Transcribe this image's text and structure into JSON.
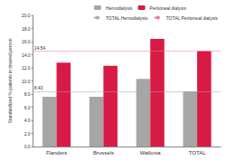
{
  "chart_data": {
    "type": "bar",
    "y_label": "Standardized % patients in insured person",
    "categories": [
      "Flanders",
      "Brussels",
      "Wallonia",
      "TOTAL"
    ],
    "series": [
      {
        "name": "Hemodialysis",
        "color": "#a6a6a6",
        "values": [
          7.6,
          7.6,
          10.3,
          8.43
        ]
      },
      {
        "name": "Peritoneal dialysis",
        "color": "#d81b44",
        "values": [
          12.8,
          12.3,
          16.4,
          14.54
        ]
      },
      {
        "name": "TOTAL Hemodialysis",
        "type": "hline",
        "color": "#a6a6a6",
        "line_style": "dotted",
        "value": 8.43,
        "data_labels": true
      },
      {
        "name": "TOTAL Peritoneal dialysis",
        "type": "hline",
        "color": "#e8798f",
        "line_style": "dotted",
        "value": 14.54,
        "data_labels": true
      }
    ],
    "ylim": [
      0,
      20
    ],
    "yticks": [
      {
        "value": 0,
        "label": "0.0"
      },
      {
        "value": 2,
        "label": "2.0"
      },
      {
        "value": 4,
        "label": "4.0"
      },
      {
        "value": 6,
        "label": "6.0"
      },
      {
        "value": 8,
        "label": "8.0"
      },
      {
        "value": 10,
        "label": "10.0"
      },
      {
        "value": 12,
        "label": "12.0"
      },
      {
        "value": 14,
        "label": "14.0"
      },
      {
        "value": 16,
        "label": "16.0"
      },
      {
        "value": 18,
        "label": "18.0"
      },
      {
        "value": 20,
        "label": "20.0"
      }
    ],
    "grid": false,
    "legend": "top-right"
  }
}
